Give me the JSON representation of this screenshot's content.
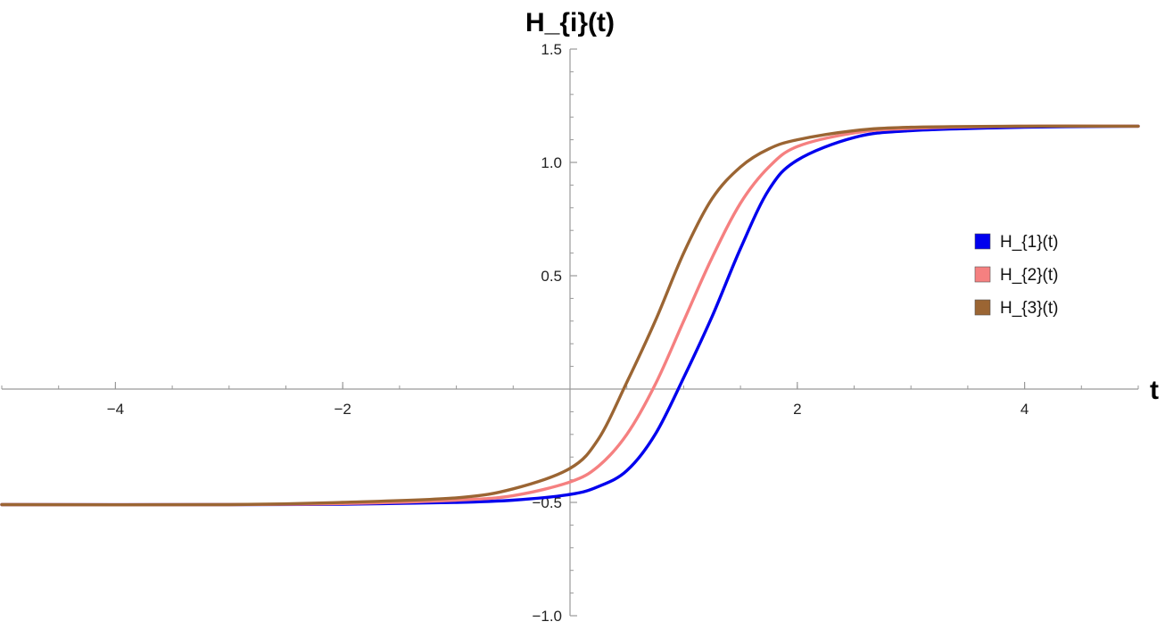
{
  "chart_data": {
    "type": "line",
    "title": "",
    "xlabel": "t",
    "ylabel": "H_{i}(t)",
    "xlim": [
      -5,
      5
    ],
    "ylim": [
      -1.0,
      1.5
    ],
    "grid": false,
    "legend_position": "right",
    "x_ticks": {
      "major": [
        -4,
        -2,
        2,
        4
      ],
      "major_labels": [
        "−4",
        "−2",
        "2",
        "4"
      ],
      "minor_step": 0.5
    },
    "y_ticks": {
      "major": [
        -1.0,
        -0.5,
        0.5,
        1.0,
        1.5
      ],
      "major_labels": [
        "−1.0",
        "−0.5",
        "0.5",
        "1.0",
        "1.5"
      ],
      "minor_step": 0.1
    },
    "series": [
      {
        "name": "H_{1}(t)",
        "color": "#0000ee",
        "x": [
          -5,
          -3,
          -2,
          -1,
          -0.5,
          0,
          0.25,
          0.5,
          0.75,
          1.0,
          1.25,
          1.5,
          1.75,
          2.0,
          2.5,
          3,
          4,
          5
        ],
        "y": [
          -0.51,
          -0.51,
          -0.508,
          -0.5,
          -0.49,
          -0.465,
          -0.43,
          -0.36,
          -0.2,
          0.05,
          0.32,
          0.62,
          0.88,
          1.01,
          1.11,
          1.14,
          1.155,
          1.16
        ]
      },
      {
        "name": "H_{2}(t)",
        "color": "#f58080",
        "x": [
          -5,
          -3,
          -2,
          -1,
          -0.5,
          0,
          0.25,
          0.5,
          0.75,
          1.0,
          1.25,
          1.5,
          1.75,
          2.0,
          2.5,
          3,
          4,
          5
        ],
        "y": [
          -0.51,
          -0.51,
          -0.505,
          -0.49,
          -0.47,
          -0.41,
          -0.34,
          -0.2,
          0.02,
          0.3,
          0.58,
          0.82,
          0.98,
          1.07,
          1.13,
          1.15,
          1.16,
          1.16
        ]
      },
      {
        "name": "H_{3}(t)",
        "color": "#9b6533",
        "x": [
          -5,
          -3,
          -2,
          -1,
          -0.5,
          0,
          0.25,
          0.5,
          0.75,
          1.0,
          1.25,
          1.5,
          1.75,
          2.0,
          2.5,
          3,
          4,
          5
        ],
        "y": [
          -0.51,
          -0.51,
          -0.5,
          -0.48,
          -0.44,
          -0.35,
          -0.22,
          0.03,
          0.3,
          0.6,
          0.84,
          0.98,
          1.06,
          1.1,
          1.14,
          1.155,
          1.16,
          1.16
        ]
      }
    ]
  }
}
